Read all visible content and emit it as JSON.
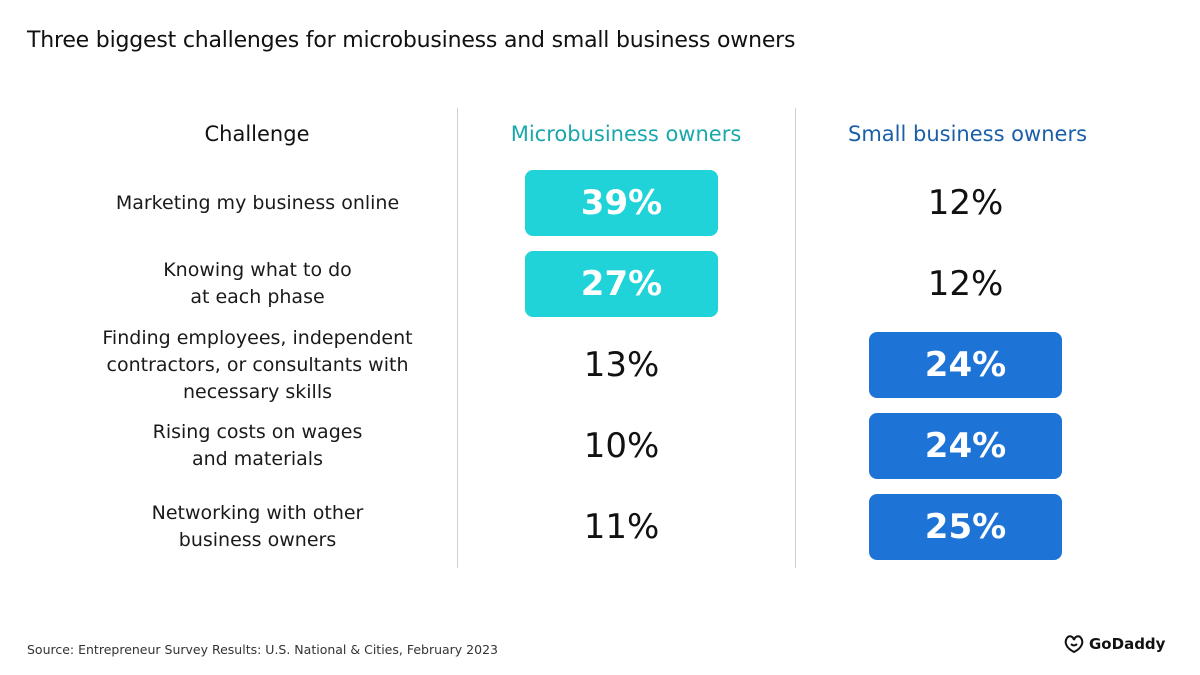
{
  "title": "Three biggest challenges for microbusiness and small business owners",
  "headers": {
    "challenge": "Challenge",
    "micro": "Microbusiness owners",
    "small": "Small business owners"
  },
  "colors": {
    "micro_accent": "#1fd3d9",
    "micro_header": "#1aa8ad",
    "small_accent": "#1e74d6",
    "small_header": "#1a5fa8"
  },
  "chart_data": {
    "type": "table",
    "columns": [
      "Challenge",
      "Microbusiness owners",
      "Small business owners"
    ],
    "rows": [
      {
        "challenge": [
          "Marketing my business online"
        ],
        "micro": "39%",
        "small": "12%",
        "micro_value": 39,
        "small_value": 12,
        "highlight": "micro"
      },
      {
        "challenge": [
          "Knowing what to do",
          "at each phase"
        ],
        "micro": "27%",
        "small": "12%",
        "micro_value": 27,
        "small_value": 12,
        "highlight": "micro"
      },
      {
        "challenge": [
          "Finding employees, independent",
          "contractors, or consultants with",
          "necessary skills"
        ],
        "micro": "13%",
        "small": "24%",
        "micro_value": 13,
        "small_value": 24,
        "highlight": "small"
      },
      {
        "challenge": [
          "Rising costs on wages",
          "and materials"
        ],
        "micro": "10%",
        "small": "24%",
        "micro_value": 10,
        "small_value": 24,
        "highlight": "small"
      },
      {
        "challenge": [
          "Networking with other",
          "business owners"
        ],
        "micro": "11%",
        "small": "25%",
        "micro_value": 11,
        "small_value": 25,
        "highlight": "small"
      }
    ]
  },
  "footer": {
    "source": "Source: Entrepreneur Survey Results: U.S. National & Cities, February 2023",
    "logo_text": "GoDaddy",
    "logo_icon": "godaddy-logo-icon"
  }
}
